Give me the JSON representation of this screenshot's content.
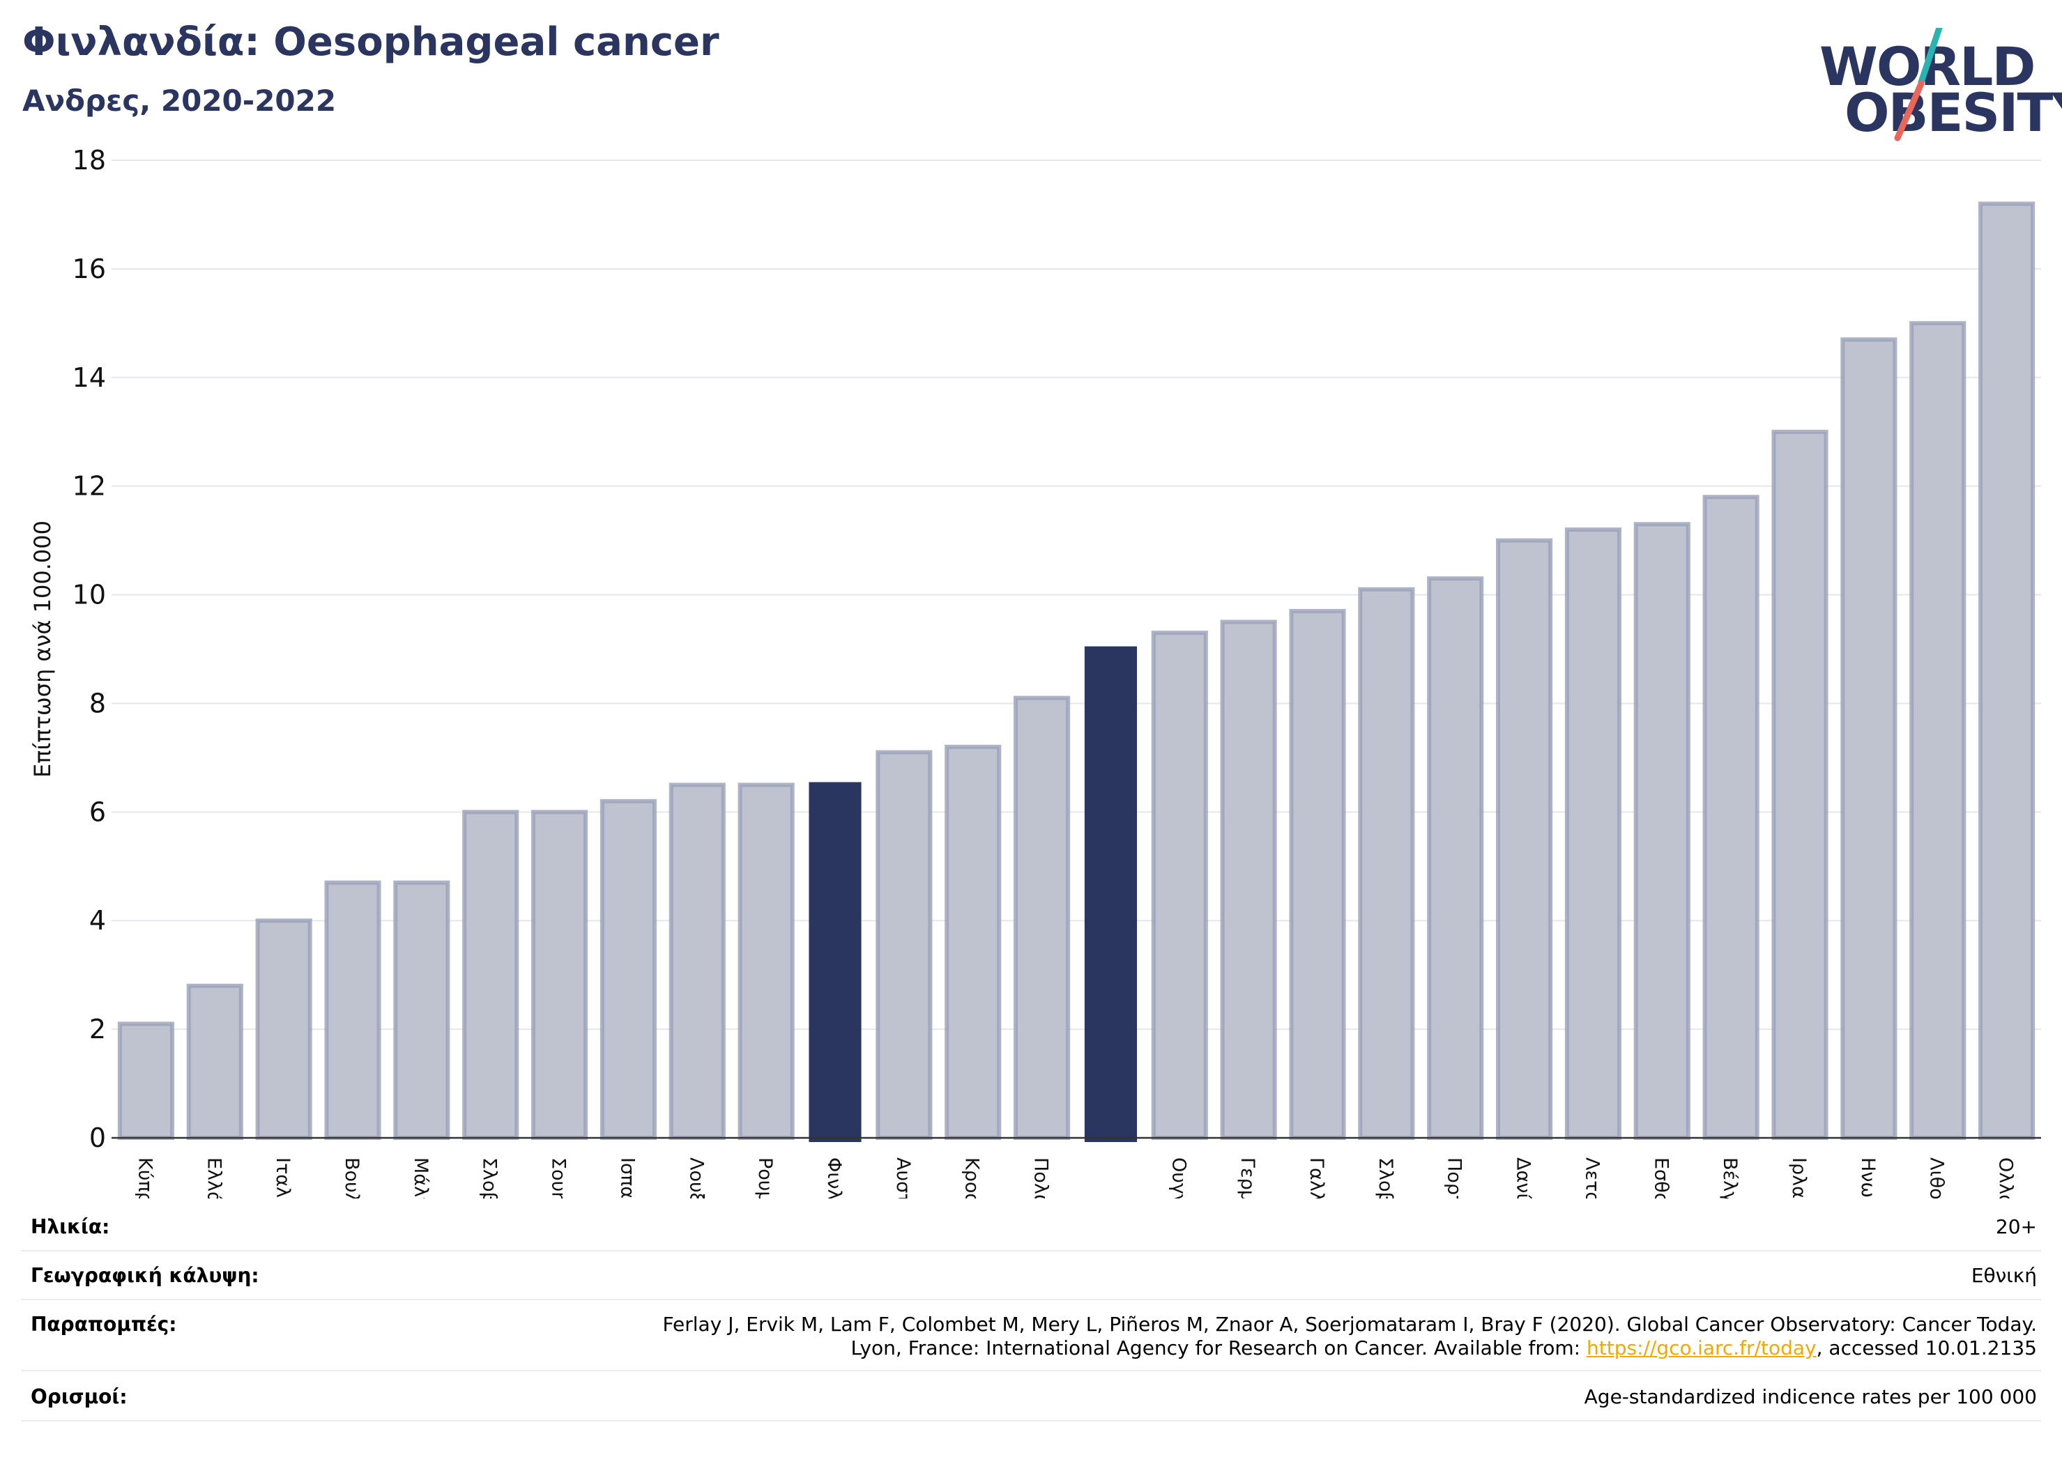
{
  "header": {
    "title": "Φινλανδία: Oesophageal cancer",
    "subtitle": "Ανδρες, 2020-2022"
  },
  "logo": {
    "line1": "WORLD",
    "line2": "OBESITY",
    "slash_colors": [
      "#2bb3b1",
      "#e8665a"
    ]
  },
  "colors": {
    "highlight": "#2a3560",
    "normal_fill": "#bfc2cf",
    "normal_stroke": "#9aa0b8",
    "grid": "#e6e6ee"
  },
  "chart_data": {
    "type": "bar",
    "title": "Φινλανδία: Oesophageal cancer",
    "ylabel": "Επίπτωση ανά 100.000",
    "ylim": [
      0,
      18
    ],
    "yticks": [
      0,
      2,
      4,
      6,
      8,
      10,
      12,
      14,
      16,
      18
    ],
    "categories": [
      "Κύπρος",
      "Ελλάδα",
      "Ιταλία",
      "Βουλγαρία",
      "Μάλτα",
      "Σλοβενία",
      "Σουηδία",
      "Ισπανία",
      "Λουξεμβούργο",
      "Ρουμανία",
      "Φινλανδία",
      "Αυστρία",
      "Κροατία",
      "Πολωνία",
      "",
      "Ουγγαρία",
      "Γερμανία",
      "Γαλλία",
      "Σλοβακία",
      "Πορτογαλία",
      "Δανία",
      "Λετονία",
      "Εσθονία",
      "Βέλγιο",
      "Ιρλανδία",
      "Ηνωμένο Βασίλειο",
      "Λιθουανία",
      "Ολλανδία"
    ],
    "values": [
      2.1,
      2.8,
      4.0,
      4.7,
      4.7,
      6.0,
      6.0,
      6.2,
      6.5,
      6.5,
      6.55,
      7.1,
      7.2,
      8.1,
      9.05,
      9.3,
      9.5,
      9.7,
      10.1,
      10.3,
      11.0,
      11.2,
      11.3,
      11.8,
      13.0,
      14.7,
      15.0,
      17.2
    ],
    "highlight": [
      10,
      14
    ],
    "grid": true
  },
  "info": {
    "age_label": "Ηλικία:",
    "age_value": "20+",
    "coverage_label": "Γεωγραφική κάλυψη:",
    "coverage_value": "Εθνική",
    "refs_label": "Παραπομπές:",
    "refs_line1": "Ferlay J, Ervik M, Lam F, Colombet M, Mery L, Piñeros M, Znaor A, Soerjomataram I, Bray F (2020). Global Cancer Observatory: Cancer Today.",
    "refs_line2_pre": "Lyon, France: International Agency for Research on Cancer. Available from: ",
    "refs_link": "https://gco.iarc.fr/today",
    "refs_line2_post": ", accessed 10.01.2135",
    "defs_label": "Ορισμοί:",
    "defs_value": "Age-standardized indicence rates per 100 000"
  }
}
